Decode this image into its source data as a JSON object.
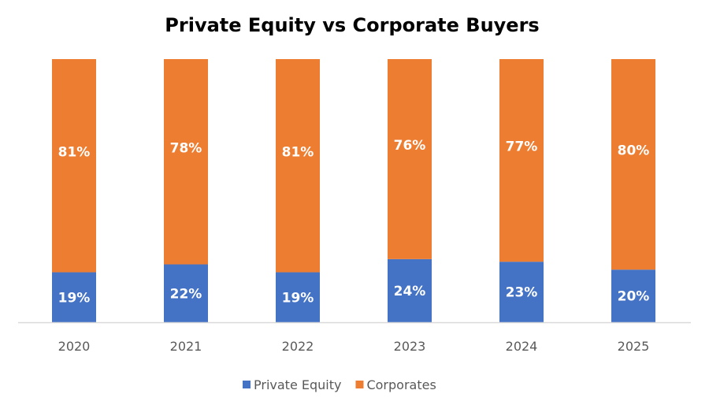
{
  "chart_data": {
    "type": "bar",
    "stacked": true,
    "percent_stacked": true,
    "title": "Private Equity vs Corporate Buyers",
    "xlabel": "",
    "ylabel": "",
    "ylim": [
      0,
      100
    ],
    "grid": false,
    "legend_position": "bottom",
    "categories": [
      "2020",
      "2021",
      "2022",
      "2023",
      "2024",
      "2025"
    ],
    "series": [
      {
        "name": "Private Equity",
        "color": "#4472C4",
        "values": [
          19,
          22,
          19,
          24,
          23,
          20
        ],
        "labels": [
          "19%",
          "22%",
          "19%",
          "24%",
          "23%",
          "20%"
        ]
      },
      {
        "name": "Corporates",
        "color": "#ED7D31",
        "values": [
          81,
          78,
          81,
          76,
          77,
          80
        ],
        "labels": [
          "81%",
          "78%",
          "81%",
          "76%",
          "77%",
          "80%"
        ]
      }
    ]
  }
}
